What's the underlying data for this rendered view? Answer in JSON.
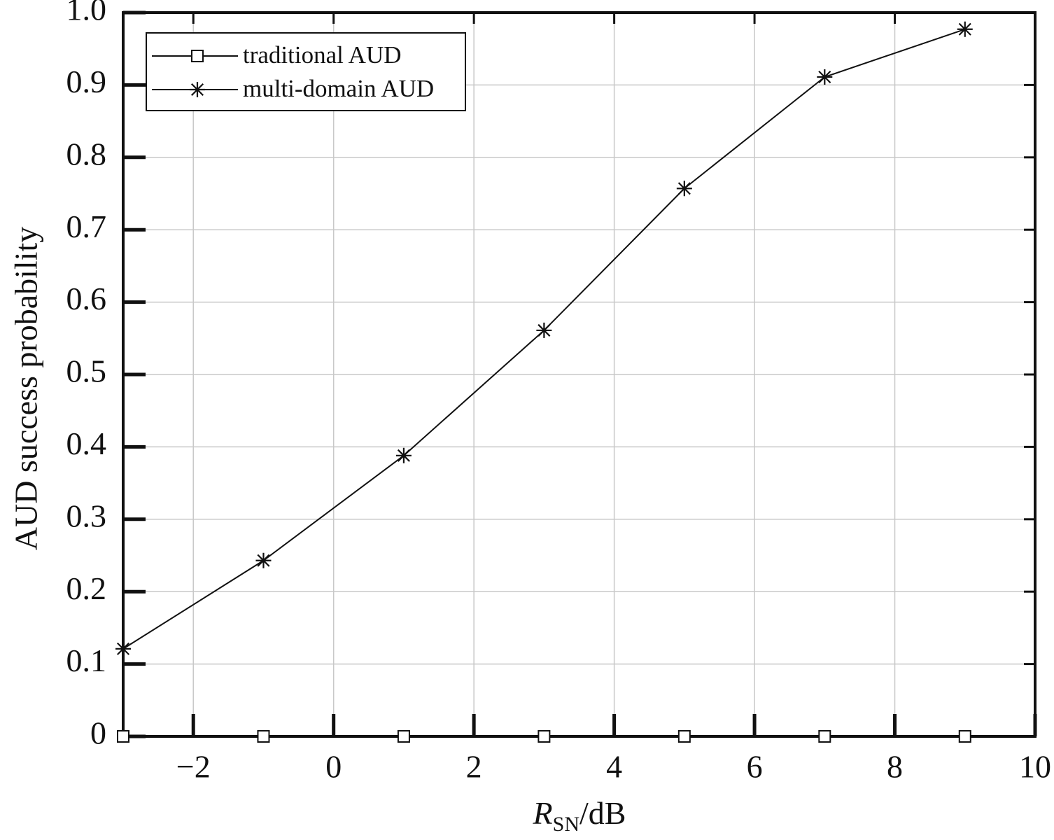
{
  "chart_data": {
    "type": "line",
    "xlabel": {
      "main": "R",
      "subscript": "SN",
      "unit": "/dB"
    },
    "ylabel": "AUD success probability",
    "x": [
      -3,
      -1,
      1,
      3,
      5,
      7,
      9
    ],
    "series": [
      {
        "name": "traditional AUD",
        "color": "#111111",
        "marker": "square",
        "values": [
          0,
          0,
          0,
          0,
          0,
          0,
          0
        ]
      },
      {
        "name": "multi-domain AUD",
        "color": "#111111",
        "marker": "asterisk",
        "values": [
          0.121,
          0.243,
          0.388,
          0.561,
          0.757,
          0.911,
          0.977
        ]
      }
    ],
    "xlim": [
      -3,
      10
    ],
    "ylim": [
      0,
      1
    ],
    "xticks": [
      {
        "value": -2,
        "label": "−2"
      },
      0,
      2,
      4,
      6,
      8,
      10
    ],
    "yticks": [
      0,
      0.1,
      0.2,
      0.3,
      0.4,
      0.5,
      0.6,
      0.7,
      0.8,
      0.9,
      {
        "value": 1,
        "label": "1.0"
      }
    ],
    "grid": true,
    "legend": "upper-left"
  }
}
